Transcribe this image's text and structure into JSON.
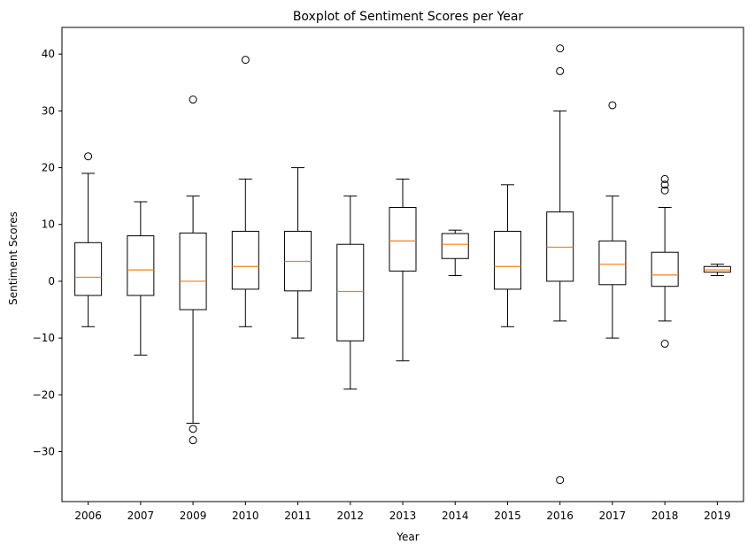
{
  "chart_data": {
    "type": "boxplot",
    "title": "Boxplot of Sentiment Scores per Year",
    "xlabel": "Year",
    "ylabel": "Sentiment Scores",
    "ylim": [
      -38.8,
      44.7
    ],
    "yticks": [
      -30,
      -20,
      -10,
      0,
      10,
      20,
      30,
      40
    ],
    "ytick_labels": [
      "−30",
      "−20",
      "−10",
      "0",
      "10",
      "20",
      "30",
      "40"
    ],
    "grid": false,
    "colors": {
      "box": "#000000",
      "median": "#ff7f0e",
      "flier": "#000000"
    },
    "categories": [
      "2006",
      "2007",
      "2009",
      "2010",
      "2011",
      "2012",
      "2013",
      "2014",
      "2015",
      "2016",
      "2017",
      "2018",
      "2019"
    ],
    "boxes": [
      {
        "whislo": -8,
        "q1": -2.5,
        "med": 0.7,
        "q3": 6.8,
        "whishi": 19,
        "fliers": [
          22
        ]
      },
      {
        "whislo": -13,
        "q1": -2.5,
        "med": 2,
        "q3": 8,
        "whishi": 14,
        "fliers": []
      },
      {
        "whislo": -25,
        "q1": -5,
        "med": 0,
        "q3": 8.5,
        "whishi": 15,
        "fliers": [
          32,
          -26,
          -28
        ]
      },
      {
        "whislo": -8,
        "q1": -1.4,
        "med": 2.6,
        "q3": 8.8,
        "whishi": 18,
        "fliers": [
          39
        ]
      },
      {
        "whislo": -10,
        "q1": -1.7,
        "med": 3.5,
        "q3": 8.8,
        "whishi": 20,
        "fliers": []
      },
      {
        "whislo": -19,
        "q1": -10.5,
        "med": -1.8,
        "q3": 6.5,
        "whishi": 15,
        "fliers": []
      },
      {
        "whislo": -14,
        "q1": 1.8,
        "med": 7.1,
        "q3": 13,
        "whishi": 18,
        "fliers": []
      },
      {
        "whislo": 1,
        "q1": 4,
        "med": 6.5,
        "q3": 8.4,
        "whishi": 9,
        "fliers": []
      },
      {
        "whislo": -8,
        "q1": -1.4,
        "med": 2.6,
        "q3": 8.8,
        "whishi": 17,
        "fliers": []
      },
      {
        "whislo": -7,
        "q1": 0,
        "med": 6,
        "q3": 12.2,
        "whishi": 30,
        "fliers": [
          41,
          37,
          -35
        ]
      },
      {
        "whislo": -10,
        "q1": -0.6,
        "med": 3,
        "q3": 7.1,
        "whishi": 15,
        "fliers": [
          31
        ]
      },
      {
        "whislo": -7,
        "q1": -0.9,
        "med": 1.1,
        "q3": 5.1,
        "whishi": 13,
        "fliers": [
          16,
          17,
          18,
          -11
        ]
      },
      {
        "whislo": 1,
        "q1": 1.6,
        "med": 2,
        "q3": 2.6,
        "whishi": 3,
        "fliers": []
      }
    ]
  }
}
